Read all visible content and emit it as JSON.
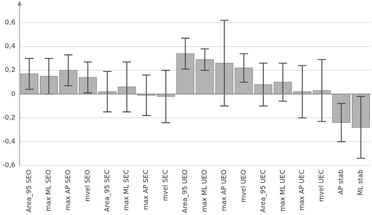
{
  "chart_data": {
    "type": "bar",
    "categories": [
      "Area_95 SEO",
      "max ML SEO",
      "max AP SEO",
      "mvel SEO",
      "Area_95 SEC",
      "max ML SEC",
      "max AP SEC",
      "mvel SEC",
      "Area_95 UEO",
      "max ML UEO",
      "max AP UEO",
      "mvel UEO",
      "Area_95 UEC",
      "max ML UEC",
      "max AP UEC",
      "mvel UEC",
      "AP stab",
      "ML stab"
    ],
    "values": [
      0.17,
      0.15,
      0.2,
      0.14,
      0.02,
      0.06,
      -0.01,
      -0.02,
      0.34,
      0.29,
      0.26,
      0.22,
      0.08,
      0.1,
      0.02,
      0.03,
      -0.24,
      -0.28
    ],
    "errors": [
      0.13,
      0.15,
      0.13,
      0.13,
      0.17,
      0.21,
      0.17,
      0.22,
      0.13,
      0.09,
      0.36,
      0.12,
      0.18,
      0.16,
      0.22,
      0.26,
      0.16,
      0.26
    ],
    "color": "#b3b3b3",
    "ylim": [
      -0.6,
      0.75
    ],
    "yticks": [
      {
        "value": -0.6,
        "label": "-0,6"
      },
      {
        "value": -0.4,
        "label": "-0,4"
      },
      {
        "value": -0.2,
        "label": "-0,2"
      },
      0,
      {
        "value": 0.2,
        "label": "0,2"
      },
      {
        "value": 0.4,
        "label": "0,4"
      },
      {
        "value": 0.6,
        "label": "0,6"
      }
    ],
    "grid": true
  }
}
